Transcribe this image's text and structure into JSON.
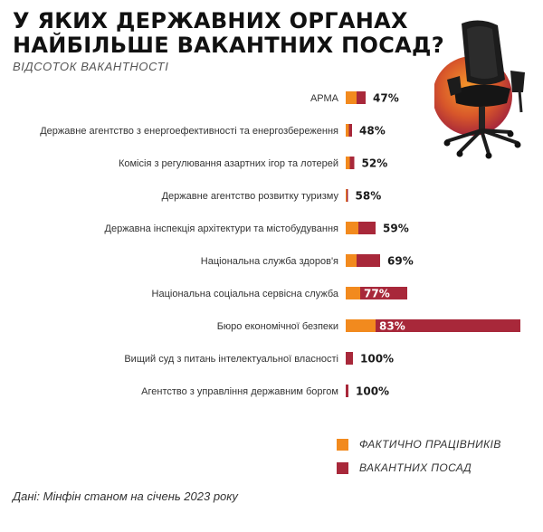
{
  "title_lines": [
    "У ЯКИХ ДЕРЖАВНИХ ОРГАНАХ",
    "НАЙБІЛЬШЕ ВАКАНТНИХ ПОСАД?"
  ],
  "subtitle": "ВІДСОТОК ВАКАНТНОСТІ",
  "source": "Дані: Мінфін станом на січень 2023 року",
  "colors": {
    "actual": "#f28a1e",
    "vacant": "#a8283a"
  },
  "chart_data": {
    "type": "bar",
    "orientation": "horizontal",
    "stacked": true,
    "categories": [
      "АРМА",
      "Державне агентство з енергоефективності та енергозбереження",
      "Комісія з регулювання азартних ігор та лотерей",
      "Державне агентство розвитку туризму",
      "Державна інспекція архітектури та містобудування",
      "Національна служба здоров'я",
      "Національна соціальна сервісна служба",
      "Бюро економічної безпеки",
      "Вищий суд з питань інтелектуальної власності",
      "Агентство з управління державним боргом"
    ],
    "vacancy_labels": [
      "47%",
      "48%",
      "52%",
      "58%",
      "59%",
      "69%",
      "77%",
      "83%",
      "100%",
      "100%"
    ],
    "series": [
      {
        "name": "ФАКТИЧНО ПРАЦІВНИКІВ",
        "values": [
          12,
          3.5,
          4.5,
          1,
          14,
          12,
          16,
          33,
          0,
          0
        ]
      },
      {
        "name": "ВАКАНТНИХ ПОСАД",
        "values": [
          10,
          3.5,
          5,
          1.5,
          19,
          26,
          52,
          160,
          8,
          3
        ]
      }
    ]
  }
}
